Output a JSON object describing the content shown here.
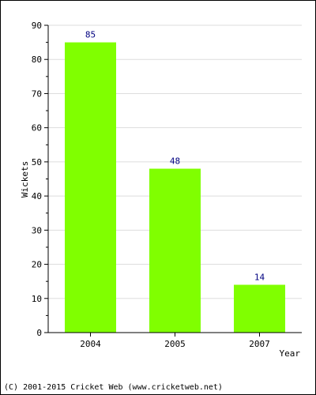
{
  "chart_data": {
    "type": "bar",
    "categories": [
      "2004",
      "2005",
      "2007"
    ],
    "values": [
      85,
      48,
      14
    ],
    "title": "",
    "xlabel": "Year",
    "ylabel": "Wickets",
    "ylim": [
      0,
      90
    ],
    "yticks": [
      0,
      10,
      20,
      30,
      40,
      50,
      60,
      70,
      80,
      90
    ],
    "grid": true,
    "legend": "none",
    "bar_color": "#80ff00",
    "value_label_color": "#000080"
  },
  "footer": {
    "copyright": "(C) 2001-2015 Cricket Web (www.cricketweb.net)"
  }
}
